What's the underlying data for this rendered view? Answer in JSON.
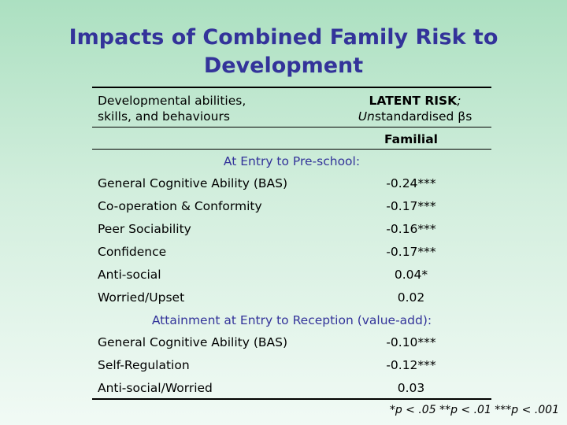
{
  "title_line1": "Impacts of Combined Family Risk to",
  "title_line2": "Development",
  "table": {
    "header_left_line1": "Developmental abilities,",
    "header_left_line2": "skills, and behaviours",
    "header_right_bold": "LATENT RISK",
    "header_right_semicolon": ";",
    "header_right_un": "Un",
    "header_right_rest": "standardised βs",
    "subheader": "Familial",
    "sections": [
      {
        "label": "At Entry to Pre-school:",
        "rows": [
          {
            "name": "General Cognitive Ability (BAS)",
            "value": "-0.24***"
          },
          {
            "name": "Co-operation & Conformity",
            "value": "-0.17***"
          },
          {
            "name": "Peer Sociability",
            "value": "-0.16***"
          },
          {
            "name": "Confidence",
            "value": "-0.17***"
          },
          {
            "name": "Anti-social",
            "value": "0.04*"
          },
          {
            "name": "Worried/Upset",
            "value": "0.02"
          }
        ]
      },
      {
        "label": "Attainment at Entry to Reception (value-add):",
        "rows": [
          {
            "name": "General Cognitive Ability (BAS)",
            "value": "-0.10***"
          },
          {
            "name": "Self-Regulation",
            "value": "-0.12***"
          },
          {
            "name": "Anti-social/Worried",
            "value": "0.03"
          }
        ]
      }
    ]
  },
  "footnote": "*p < .05 **p < .01 ***p < .001",
  "colors": {
    "title": "#33339a",
    "section": "#33339a",
    "text": "#000000"
  }
}
